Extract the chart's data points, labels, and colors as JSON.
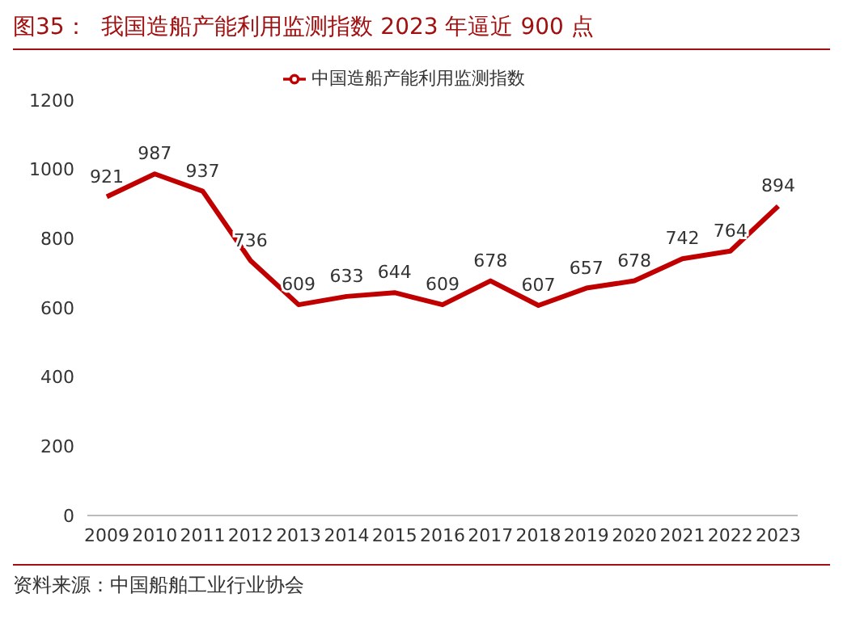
{
  "chart_data": {
    "type": "line",
    "title": "图35：  我国造船产能利用监测指数 2023 年逼近 900 点",
    "categories": [
      "2009",
      "2010",
      "2011",
      "2012",
      "2013",
      "2014",
      "2015",
      "2016",
      "2017",
      "2018",
      "2019",
      "2020",
      "2021",
      "2022",
      "2023"
    ],
    "series": [
      {
        "name": "中国造船产能利用监测指数",
        "color": "#c00000",
        "values": [
          921,
          987,
          937,
          736,
          609,
          633,
          644,
          609,
          678,
          607,
          657,
          678,
          742,
          764,
          894
        ]
      }
    ],
    "ylim": [
      0,
      1200
    ],
    "yticks": [
      0,
      200,
      400,
      600,
      800,
      1000,
      1200
    ],
    "grid": false,
    "legend": "top",
    "marker": "none",
    "line_style": "solid",
    "data_labels": true,
    "annotations": [
      "资料来源：中国船舶工业行业协会"
    ]
  }
}
